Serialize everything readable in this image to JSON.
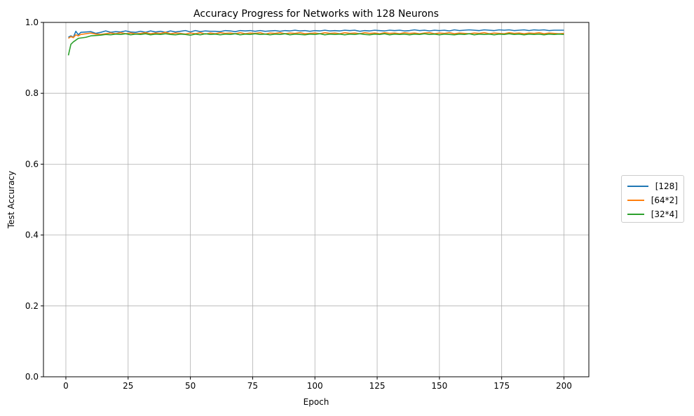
{
  "chart_data": {
    "type": "line",
    "title": "Accuracy Progress for Networks with 128 Neurons",
    "xlabel": "Epoch",
    "ylabel": "Test Accuracy",
    "xlim": [
      -9,
      210
    ],
    "ylim": [
      0.0,
      1.0
    ],
    "xticks": [
      0,
      25,
      50,
      75,
      100,
      125,
      150,
      175,
      200
    ],
    "xtick_labels": [
      "0",
      "25",
      "50",
      "75",
      "100",
      "125",
      "150",
      "175",
      "200"
    ],
    "yticks": [
      0.0,
      0.2,
      0.4,
      0.6,
      0.8,
      1.0
    ],
    "ytick_labels": [
      "0.0",
      "0.2",
      "0.4",
      "0.6",
      "0.8",
      "1.0"
    ],
    "grid": true,
    "legend_position": "outside-right",
    "series": [
      {
        "name": "[128]",
        "color": "#1f77b4",
        "x": [
          1,
          2,
          3,
          4,
          5,
          6,
          8,
          10,
          12,
          14,
          16,
          18,
          20,
          22,
          24,
          26,
          28,
          30,
          32,
          34,
          36,
          38,
          40,
          42,
          44,
          46,
          48,
          50,
          52,
          54,
          56,
          58,
          60,
          62,
          64,
          66,
          68,
          70,
          72,
          74,
          76,
          78,
          80,
          82,
          84,
          86,
          88,
          90,
          92,
          94,
          96,
          98,
          100,
          102,
          104,
          106,
          108,
          110,
          112,
          114,
          116,
          118,
          120,
          122,
          124,
          126,
          128,
          130,
          132,
          134,
          136,
          138,
          140,
          142,
          144,
          146,
          148,
          150,
          152,
          154,
          156,
          158,
          160,
          162,
          164,
          166,
          168,
          170,
          172,
          174,
          176,
          178,
          180,
          182,
          184,
          186,
          188,
          190,
          192,
          194,
          196,
          198,
          200
        ],
        "y": [
          0.958,
          0.962,
          0.958,
          0.975,
          0.965,
          0.972,
          0.973,
          0.974,
          0.969,
          0.972,
          0.976,
          0.972,
          0.974,
          0.973,
          0.976,
          0.973,
          0.972,
          0.975,
          0.972,
          0.976,
          0.973,
          0.975,
          0.972,
          0.976,
          0.973,
          0.975,
          0.977,
          0.973,
          0.977,
          0.974,
          0.976,
          0.975,
          0.975,
          0.974,
          0.977,
          0.976,
          0.974,
          0.977,
          0.976,
          0.977,
          0.975,
          0.977,
          0.975,
          0.976,
          0.977,
          0.975,
          0.977,
          0.976,
          0.978,
          0.976,
          0.977,
          0.975,
          0.977,
          0.976,
          0.978,
          0.976,
          0.977,
          0.976,
          0.978,
          0.977,
          0.978,
          0.975,
          0.977,
          0.976,
          0.978,
          0.977,
          0.976,
          0.978,
          0.977,
          0.978,
          0.976,
          0.977,
          0.979,
          0.977,
          0.978,
          0.976,
          0.978,
          0.977,
          0.978,
          0.976,
          0.979,
          0.977,
          0.978,
          0.979,
          0.978,
          0.977,
          0.979,
          0.978,
          0.977,
          0.979,
          0.978,
          0.979,
          0.977,
          0.978,
          0.979,
          0.977,
          0.979,
          0.978,
          0.979,
          0.977,
          0.978,
          0.978,
          0.978
        ]
      },
      {
        "name": "[64*2]",
        "color": "#ff7f0e",
        "x": [
          1,
          2,
          3,
          4,
          5,
          6,
          8,
          10,
          12,
          14,
          16,
          18,
          20,
          22,
          24,
          26,
          28,
          30,
          32,
          34,
          36,
          38,
          40,
          42,
          44,
          46,
          48,
          50,
          52,
          54,
          56,
          58,
          60,
          62,
          64,
          66,
          68,
          70,
          72,
          74,
          76,
          78,
          80,
          82,
          84,
          86,
          88,
          90,
          92,
          94,
          96,
          98,
          100,
          102,
          104,
          106,
          108,
          110,
          112,
          114,
          116,
          118,
          120,
          122,
          124,
          126,
          128,
          130,
          132,
          134,
          136,
          138,
          140,
          142,
          144,
          146,
          148,
          150,
          152,
          154,
          156,
          158,
          160,
          162,
          164,
          166,
          168,
          170,
          172,
          174,
          176,
          178,
          180,
          182,
          184,
          186,
          188,
          190,
          192,
          194,
          196,
          198,
          200
        ],
        "y": [
          0.955,
          0.96,
          0.957,
          0.965,
          0.962,
          0.966,
          0.968,
          0.97,
          0.967,
          0.966,
          0.968,
          0.97,
          0.968,
          0.971,
          0.968,
          0.97,
          0.968,
          0.969,
          0.971,
          0.968,
          0.97,
          0.969,
          0.972,
          0.968,
          0.97,
          0.969,
          0.967,
          0.97,
          0.968,
          0.971,
          0.967,
          0.97,
          0.968,
          0.971,
          0.969,
          0.97,
          0.968,
          0.971,
          0.968,
          0.97,
          0.969,
          0.971,
          0.967,
          0.97,
          0.969,
          0.971,
          0.968,
          0.97,
          0.969,
          0.971,
          0.968,
          0.969,
          0.97,
          0.968,
          0.971,
          0.969,
          0.97,
          0.968,
          0.971,
          0.969,
          0.97,
          0.968,
          0.971,
          0.969,
          0.97,
          0.968,
          0.971,
          0.969,
          0.97,
          0.968,
          0.971,
          0.969,
          0.97,
          0.968,
          0.97,
          0.971,
          0.968,
          0.97,
          0.969,
          0.971,
          0.968,
          0.97,
          0.969,
          0.968,
          0.97,
          0.969,
          0.971,
          0.968,
          0.97,
          0.969,
          0.968,
          0.971,
          0.969,
          0.97,
          0.968,
          0.97,
          0.969,
          0.971,
          0.968,
          0.97,
          0.969,
          0.968,
          0.969
        ]
      },
      {
        "name": "[32*4]",
        "color": "#2ca02c",
        "x": [
          1,
          2,
          3,
          4,
          5,
          6,
          8,
          10,
          12,
          14,
          16,
          18,
          20,
          22,
          24,
          26,
          28,
          30,
          32,
          34,
          36,
          38,
          40,
          42,
          44,
          46,
          48,
          50,
          52,
          54,
          56,
          58,
          60,
          62,
          64,
          66,
          68,
          70,
          72,
          74,
          76,
          78,
          80,
          82,
          84,
          86,
          88,
          90,
          92,
          94,
          96,
          98,
          100,
          102,
          104,
          106,
          108,
          110,
          112,
          114,
          116,
          118,
          120,
          122,
          124,
          126,
          128,
          130,
          132,
          134,
          136,
          138,
          140,
          142,
          144,
          146,
          148,
          150,
          152,
          154,
          156,
          158,
          160,
          162,
          164,
          166,
          168,
          170,
          172,
          174,
          176,
          178,
          180,
          182,
          184,
          186,
          188,
          190,
          192,
          194,
          196,
          198,
          200
        ],
        "y": [
          0.907,
          0.938,
          0.945,
          0.95,
          0.955,
          0.956,
          0.958,
          0.962,
          0.963,
          0.964,
          0.966,
          0.965,
          0.967,
          0.966,
          0.968,
          0.965,
          0.967,
          0.966,
          0.968,
          0.965,
          0.967,
          0.966,
          0.968,
          0.966,
          0.965,
          0.967,
          0.966,
          0.964,
          0.967,
          0.965,
          0.968,
          0.966,
          0.967,
          0.965,
          0.967,
          0.966,
          0.968,
          0.965,
          0.967,
          0.966,
          0.968,
          0.966,
          0.967,
          0.965,
          0.967,
          0.966,
          0.968,
          0.965,
          0.967,
          0.966,
          0.965,
          0.967,
          0.966,
          0.968,
          0.965,
          0.967,
          0.966,
          0.967,
          0.965,
          0.967,
          0.966,
          0.968,
          0.966,
          0.965,
          0.967,
          0.966,
          0.968,
          0.965,
          0.967,
          0.966,
          0.967,
          0.965,
          0.967,
          0.966,
          0.968,
          0.966,
          0.967,
          0.965,
          0.967,
          0.966,
          0.965,
          0.967,
          0.966,
          0.968,
          0.965,
          0.967,
          0.966,
          0.967,
          0.965,
          0.967,
          0.966,
          0.968,
          0.966,
          0.967,
          0.965,
          0.967,
          0.966,
          0.967,
          0.965,
          0.967,
          0.966,
          0.967,
          0.966
        ]
      }
    ]
  }
}
